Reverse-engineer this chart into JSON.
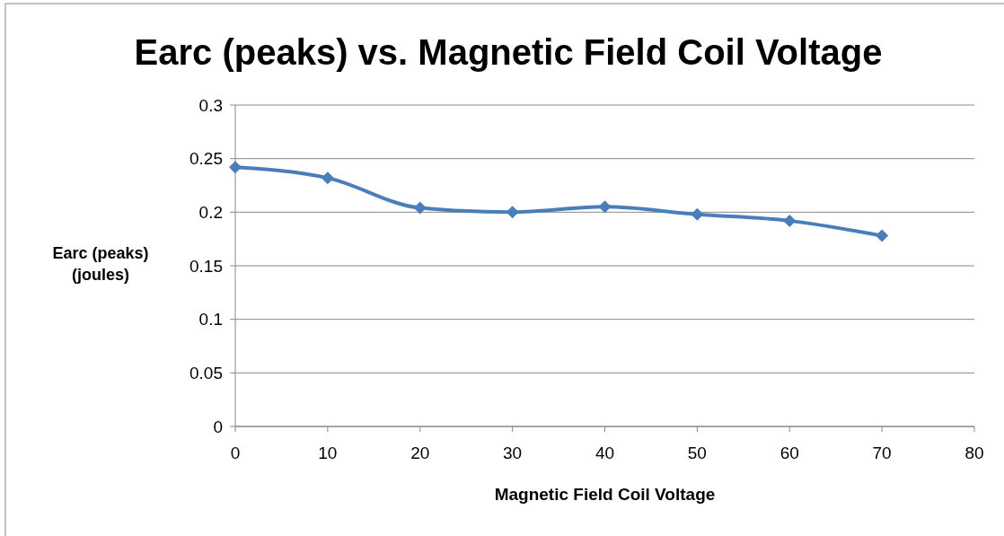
{
  "chart_data": {
    "type": "line",
    "title": "Earc (peaks) vs. Magnetic Field Coil Voltage",
    "xlabel": "Magnetic Field Coil Voltage",
    "ylabel": "Earc (peaks) (joules)",
    "x": [
      0,
      10,
      20,
      30,
      40,
      50,
      60,
      70
    ],
    "series": [
      {
        "color": "#4a7ebb",
        "values": [
          0.242,
          0.232,
          0.204,
          0.2,
          0.205,
          0.198,
          0.192,
          0.178
        ]
      }
    ],
    "xlim": [
      0,
      80
    ],
    "xticks": [
      0,
      10,
      20,
      30,
      40,
      50,
      60,
      70,
      80
    ],
    "ylim": [
      0,
      0.3
    ],
    "yticks": [
      0,
      0.05,
      0.1,
      0.15,
      0.2,
      0.25,
      0.3
    ],
    "grid": "y",
    "marker": "diamond",
    "line_style": "solid"
  }
}
